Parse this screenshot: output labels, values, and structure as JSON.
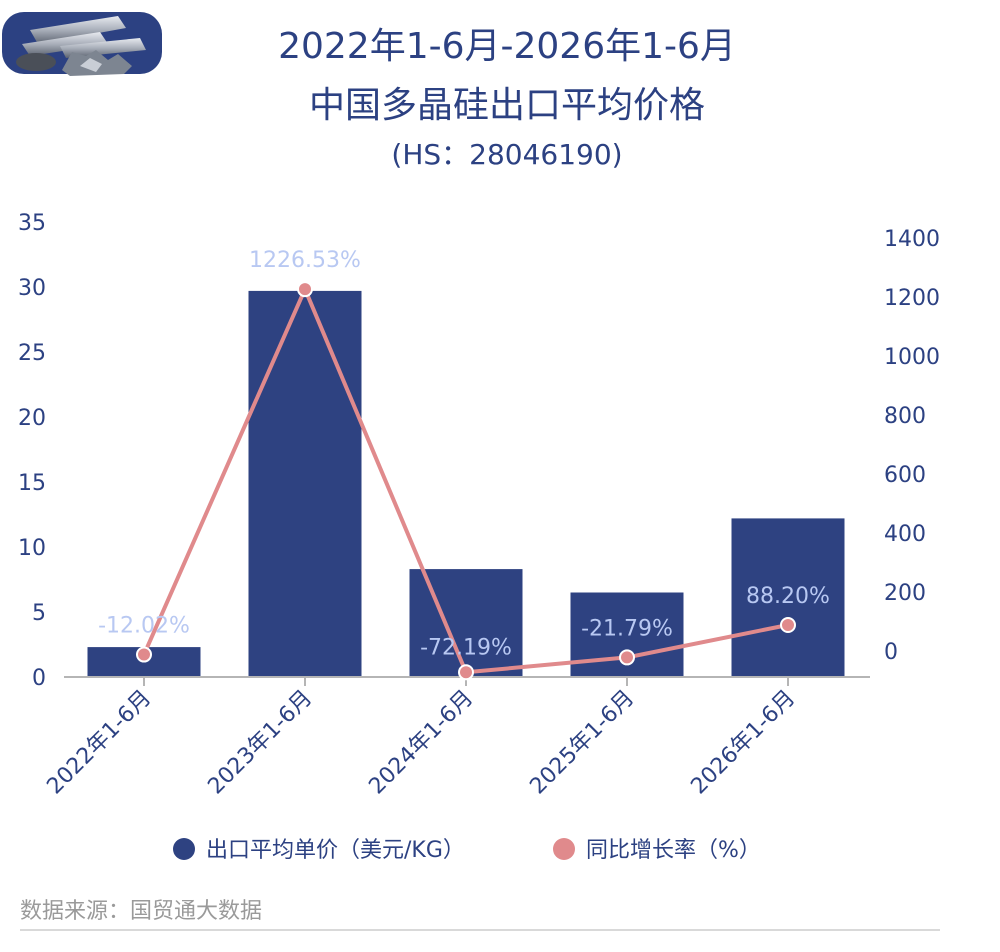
{
  "title": {
    "line1": "2022年1-6月-2026年1-6月",
    "line2": "中国多晶硅出口平均价格",
    "line3": "(HS：28046190)"
  },
  "logo_icon": "silicon-ingots-image",
  "source": "数据来源：国贸通大数据",
  "colors": {
    "bar": "#2e4281",
    "line": "#e08a8c",
    "label": "#b8c8f2",
    "axis_text": "#2c4182",
    "source_text": "#9a9a9a"
  },
  "chart_data": {
    "type": "bar",
    "categories": [
      "2022年1-6月",
      "2023年1-6月",
      "2024年1-6月",
      "2025年1-6月",
      "2026年1-6月"
    ],
    "series": [
      {
        "name": "出口平均单价（美元/KG）",
        "type": "bar",
        "axis": "left",
        "values": [
          2.3,
          29.7,
          8.3,
          6.5,
          12.2
        ]
      },
      {
        "name": "同比增长率（%）",
        "type": "line",
        "axis": "right",
        "values": [
          -12.02,
          1226.53,
          -72.19,
          -21.79,
          88.2
        ],
        "labels": [
          "-12.02%",
          "1226.53%",
          "-72.19%",
          "-21.79%",
          "88.20%"
        ]
      }
    ],
    "ylim_left": [
      0,
      35
    ],
    "yticks_left": [
      "0",
      "5",
      "10",
      "15",
      "20",
      "25",
      "30",
      "35"
    ],
    "ylim_right": [
      0,
      1400
    ],
    "yticks_right": [
      "0",
      "200",
      "400",
      "600",
      "800",
      "1000",
      "1200",
      "1400"
    ],
    "legend_position": "bottom",
    "grid": false
  }
}
